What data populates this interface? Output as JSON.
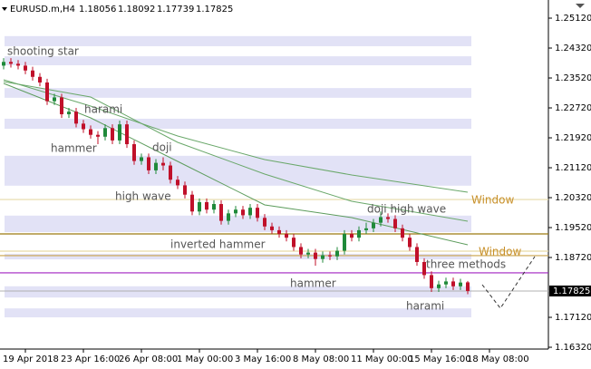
{
  "chart_data": {
    "type": "candlestick",
    "symbol": "EURUSD.m,H4",
    "open": [
      1.2385,
      1.2395,
      1.239,
      1.2385,
      1.2372,
      1.2355,
      1.234,
      1.229,
      1.23,
      1.2255,
      1.2262,
      1.223,
      1.2215,
      1.22,
      1.2195,
      1.2218,
      1.2185,
      1.2228,
      1.2175,
      1.213,
      1.214,
      1.2105,
      1.2125,
      1.2118,
      1.208,
      1.2065,
      1.204,
      1.1995,
      1.202,
      1.2,
      1.2015,
      1.197,
      1.199,
      1.2,
      1.1985,
      1.2005,
      1.1978,
      1.1955,
      1.1945,
      1.1935,
      1.1925,
      1.19,
      1.188,
      1.1885,
      1.1868,
      1.1878,
      1.1875,
      1.189,
      1.1935,
      1.1925,
      1.1945,
      1.195,
      1.1965,
      1.198,
      1.1975,
      1.195,
      1.1925,
      1.19,
      1.186,
      1.1825,
      1.179,
      1.18,
      1.1808,
      1.1795,
      1.18056
    ],
    "high": [
      1.2405,
      1.2405,
      1.24,
      1.2395,
      1.2382,
      1.2365,
      1.235,
      1.231,
      1.231,
      1.2272,
      1.2272,
      1.224,
      1.2225,
      1.221,
      1.2228,
      1.2228,
      1.2238,
      1.2238,
      1.2185,
      1.215,
      1.215,
      1.2135,
      1.214,
      1.2128,
      1.209,
      1.2075,
      1.205,
      1.203,
      1.203,
      1.2025,
      1.2025,
      1.2,
      1.201,
      1.201,
      1.2015,
      1.2015,
      1.1988,
      1.1965,
      1.1955,
      1.1945,
      1.1935,
      1.191,
      1.1895,
      1.1895,
      1.1888,
      1.1888,
      1.19,
      1.1945,
      1.1945,
      1.1955,
      1.1965,
      1.1975,
      1.1995,
      1.199,
      1.1985,
      1.196,
      1.1935,
      1.191,
      1.187,
      1.1835,
      1.181,
      1.1818,
      1.1818,
      1.1815,
      1.18092
    ],
    "low": [
      1.2375,
      1.238,
      1.2375,
      1.2362,
      1.2345,
      1.233,
      1.228,
      1.228,
      1.2245,
      1.2245,
      1.222,
      1.2205,
      1.219,
      1.2175,
      1.2185,
      1.2175,
      1.2175,
      1.2165,
      1.212,
      1.212,
      1.2095,
      1.2095,
      1.2105,
      1.207,
      1.2055,
      1.203,
      1.1985,
      1.1985,
      1.199,
      1.199,
      1.196,
      1.196,
      1.198,
      1.1975,
      1.1975,
      1.1968,
      1.1945,
      1.1935,
      1.1925,
      1.1915,
      1.189,
      1.187,
      1.187,
      1.185,
      1.1858,
      1.1865,
      1.1865,
      1.188,
      1.1915,
      1.1915,
      1.1935,
      1.194,
      1.1955,
      1.1965,
      1.194,
      1.1915,
      1.189,
      1.185,
      1.1815,
      1.178,
      1.178,
      1.179,
      1.1785,
      1.1785,
      1.17739
    ],
    "close": [
      1.2395,
      1.239,
      1.2385,
      1.2372,
      1.2355,
      1.234,
      1.229,
      1.23,
      1.2255,
      1.2262,
      1.223,
      1.2215,
      1.22,
      1.2195,
      1.2218,
      1.2185,
      1.2228,
      1.2175,
      1.213,
      1.214,
      1.2105,
      1.2125,
      1.2118,
      1.208,
      1.2065,
      1.204,
      1.1995,
      1.202,
      1.2,
      1.2015,
      1.197,
      1.199,
      1.2,
      1.1985,
      1.2005,
      1.1978,
      1.1955,
      1.1945,
      1.1935,
      1.1925,
      1.19,
      1.188,
      1.1885,
      1.1868,
      1.1878,
      1.1875,
      1.189,
      1.1935,
      1.1925,
      1.1945,
      1.195,
      1.1965,
      1.198,
      1.1975,
      1.195,
      1.1925,
      1.19,
      1.186,
      1.1825,
      1.179,
      1.18,
      1.1808,
      1.1795,
      1.1805,
      1.17825
    ],
    "up_color": "#1f8a3a",
    "down_color": "#c0102a",
    "xlim": [
      -0.5,
      75.125
    ],
    "xticks": [
      {
        "value": 3,
        "label": "19 Apr 2018"
      },
      {
        "value": 11,
        "label": "23 Apr 16:00"
      },
      {
        "value": 19,
        "label": "26 Apr 08:00"
      },
      {
        "value": 27,
        "label": "1 May 00:00"
      },
      {
        "value": 35,
        "label": "3 May 16:00"
      },
      {
        "value": 43,
        "label": "8 May 08:00"
      },
      {
        "value": 51,
        "label": "11 May 00:00"
      },
      {
        "value": 59,
        "label": "15 May 16:00"
      },
      {
        "value": 67,
        "label": "18 May 08:00"
      }
    ],
    "ylim": [
      1.16272,
      1.25484
    ],
    "yticks": [
      {
        "value": 1.2512,
        "label": "1.25120"
      },
      {
        "value": 1.2432,
        "label": "1.24320"
      },
      {
        "value": 1.2352,
        "label": "1.23520"
      },
      {
        "value": 1.2272,
        "label": "1.22720"
      },
      {
        "value": 1.2192,
        "label": "1.21920"
      },
      {
        "value": 1.2112,
        "label": "1.21120"
      },
      {
        "value": 1.2032,
        "label": "1.20320"
      },
      {
        "value": 1.1952,
        "label": "1.19520"
      },
      {
        "value": 1.1872,
        "label": "1.18720"
      },
      {
        "value": 1.1712,
        "label": "1.17120"
      },
      {
        "value": 1.1632,
        "label": "1.16320"
      }
    ],
    "zones": [
      [
        1.2464,
        1.2437
      ],
      [
        1.241,
        1.2386
      ],
      [
        1.2325,
        1.2299
      ],
      [
        1.2243,
        1.2216
      ],
      [
        1.2144,
        1.2064
      ],
      [
        1.1984,
        1.194
      ],
      [
        1.1882,
        1.1867
      ],
      [
        1.1795,
        1.1765
      ],
      [
        1.1736,
        1.1712
      ]
    ],
    "zone_color": "#e2e2f6",
    "levels": [
      {
        "value": 1.2027,
        "color": "#e6d9a8"
      },
      {
        "value": 1.1935,
        "color": "#9c7a10"
      },
      {
        "value": 1.1889,
        "color": "#e6d9a8"
      },
      {
        "value": 1.1877,
        "color": "#c9a24a"
      },
      {
        "value": 1.1831,
        "color": "#a020c0"
      }
    ],
    "mas": [
      {
        "color": "#6aa86a",
        "x": [
          0,
          12,
          24,
          36,
          48,
          64
        ],
        "values": [
          1.23472,
          1.22769,
          1.21969,
          1.21339,
          1.20926,
          1.20466
        ]
      },
      {
        "color": "#6aa86a",
        "x": [
          0,
          12,
          24,
          36,
          48,
          64
        ],
        "values": [
          1.23423,
          1.23011,
          1.21799,
          1.20951,
          1.20223,
          1.1969
        ]
      },
      {
        "color": "#5c9c5c",
        "x": [
          0,
          12,
          24,
          36,
          48,
          64
        ],
        "values": [
          1.23375,
          1.22454,
          1.2129,
          1.20126,
          1.19787,
          1.1906
        ]
      }
    ],
    "annotations": [
      "shooting star",
      "harami",
      "hammer",
      "doji",
      "high wave",
      "inverted hammer",
      "hammer",
      "doji high wave",
      "three methods",
      "harami",
      "Window",
      "Window"
    ]
  }
}
